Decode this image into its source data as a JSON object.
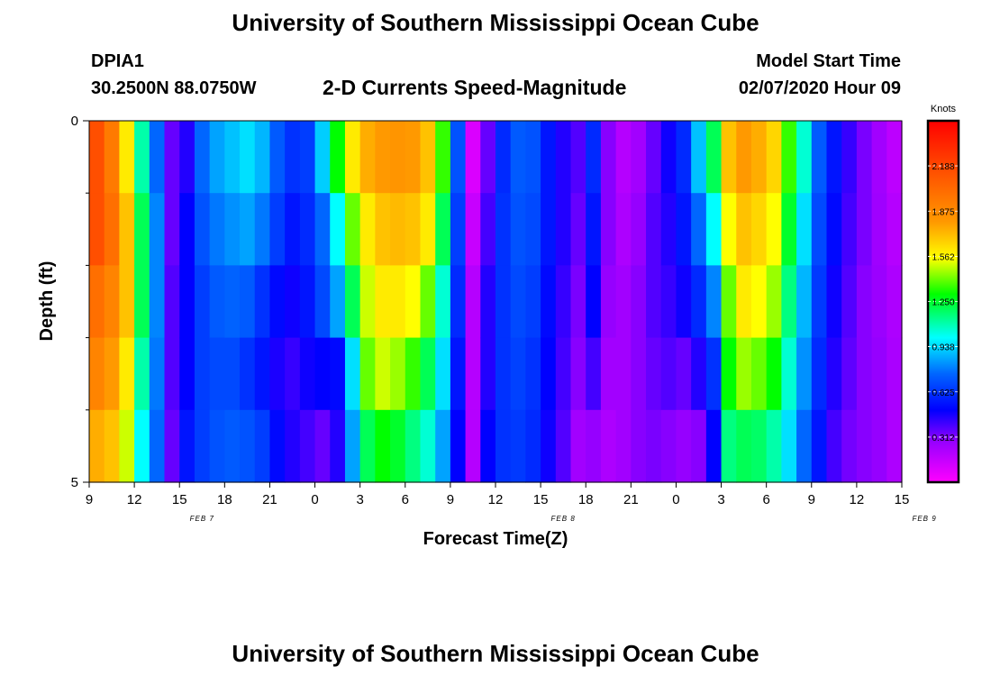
{
  "header": {
    "title": "University of Southern Mississippi Ocean Cube",
    "station": "DPIA1",
    "coordinates": "30.2500N 88.0750W",
    "subtitle": "2-D Currents Speed-Magnitude",
    "model_start_label": "Model Start Time",
    "model_start_value": "02/07/2020 Hour 09"
  },
  "footer": {
    "title": "University of Southern Mississippi Ocean Cube"
  },
  "chart_data": {
    "type": "heatmap",
    "xlabel": "Forecast Time(Z)",
    "ylabel": "Depth (ft)",
    "x_tick_labels": [
      "9",
      "12",
      "15",
      "18",
      "21",
      "0",
      "3",
      "6",
      "9",
      "12",
      "15",
      "18",
      "21",
      "0",
      "3",
      "6",
      "9",
      "12",
      "15"
    ],
    "day_labels": [
      {
        "label": "FEB 7",
        "hour_offset": 7.5
      },
      {
        "label": "FEB 8",
        "hour_offset": 31.5
      },
      {
        "label": "FEB 9",
        "hour_offset": 55.5
      }
    ],
    "x_range_hours": [
      0,
      54
    ],
    "y_tick_labels": [
      "0",
      "5"
    ],
    "y_range": [
      0,
      5
    ],
    "colorbar": {
      "unit": "Knots",
      "ticks": [
        "2.188",
        "1.875",
        "1.562",
        "1.250",
        "0.938",
        "0.625",
        "0.312"
      ],
      "range": [
        0,
        2.5
      ]
    },
    "depth_levels": 5,
    "columns": [
      {
        "hour": 0.5,
        "speeds": [
          2.15,
          2.15,
          2.0,
          1.9,
          1.75
        ]
      },
      {
        "hour": 1.5,
        "speeds": [
          1.95,
          2.0,
          1.9,
          1.8,
          1.7
        ]
      },
      {
        "hour": 2.5,
        "speeds": [
          1.6,
          1.7,
          1.7,
          1.6,
          1.5
        ]
      },
      {
        "hour": 3.5,
        "speeds": [
          1.1,
          1.2,
          1.2,
          1.1,
          1.0
        ]
      },
      {
        "hour": 4.5,
        "speeds": [
          0.75,
          0.8,
          0.8,
          0.78,
          0.75
        ]
      },
      {
        "hour": 5.5,
        "speeds": [
          0.35,
          0.35,
          0.38,
          0.38,
          0.35
        ]
      },
      {
        "hour": 6.5,
        "speeds": [
          0.45,
          0.5,
          0.5,
          0.5,
          0.55
        ]
      },
      {
        "hour": 7.5,
        "speeds": [
          0.75,
          0.7,
          0.65,
          0.65,
          0.65
        ]
      },
      {
        "hour": 8.5,
        "speeds": [
          0.85,
          0.78,
          0.72,
          0.68,
          0.7
        ]
      },
      {
        "hour": 9.5,
        "speeds": [
          0.9,
          0.82,
          0.74,
          0.68,
          0.72
        ]
      },
      {
        "hour": 10.5,
        "speeds": [
          0.95,
          0.85,
          0.72,
          0.62,
          0.7
        ]
      },
      {
        "hour": 11.5,
        "speeds": [
          0.88,
          0.78,
          0.62,
          0.55,
          0.65
        ]
      },
      {
        "hour": 12.5,
        "speeds": [
          0.72,
          0.65,
          0.52,
          0.46,
          0.52
        ]
      },
      {
        "hour": 13.5,
        "speeds": [
          0.62,
          0.55,
          0.48,
          0.42,
          0.45
        ]
      },
      {
        "hour": 14.5,
        "speeds": [
          0.65,
          0.6,
          0.55,
          0.48,
          0.4
        ]
      },
      {
        "hour": 15.5,
        "speeds": [
          0.92,
          0.75,
          0.68,
          0.5,
          0.35
        ]
      },
      {
        "hour": 16.5,
        "speeds": [
          1.3,
          1.0,
          0.85,
          0.52,
          0.45
        ]
      },
      {
        "hour": 17.5,
        "speeds": [
          1.6,
          1.4,
          1.2,
          0.95,
          0.85
        ]
      },
      {
        "hour": 18.5,
        "speeds": [
          1.75,
          1.6,
          1.5,
          1.4,
          1.2
        ]
      },
      {
        "hour": 19.5,
        "speeds": [
          1.8,
          1.7,
          1.6,
          1.5,
          1.3
        ]
      },
      {
        "hour": 20.5,
        "speeds": [
          1.82,
          1.72,
          1.6,
          1.45,
          1.25
        ]
      },
      {
        "hour": 21.5,
        "speeds": [
          1.8,
          1.7,
          1.55,
          1.35,
          1.15
        ]
      },
      {
        "hour": 22.5,
        "speeds": [
          1.7,
          1.6,
          1.4,
          1.2,
          1.05
        ]
      },
      {
        "hour": 23.5,
        "speeds": [
          1.35,
          1.2,
          1.05,
          0.95,
          0.85
        ]
      },
      {
        "hour": 24.5,
        "speeds": [
          0.7,
          0.65,
          0.6,
          0.55,
          0.5
        ]
      },
      {
        "hour": 25.5,
        "speeds": [
          0.1,
          0.15,
          0.2,
          0.2,
          0.2
        ]
      },
      {
        "hour": 26.5,
        "speeds": [
          0.35,
          0.4,
          0.45,
          0.45,
          0.5
        ]
      },
      {
        "hour": 27.5,
        "speeds": [
          0.6,
          0.62,
          0.62,
          0.62,
          0.62
        ]
      },
      {
        "hour": 28.5,
        "speeds": [
          0.72,
          0.7,
          0.68,
          0.66,
          0.64
        ]
      },
      {
        "hour": 29.5,
        "speeds": [
          0.7,
          0.68,
          0.65,
          0.62,
          0.6
        ]
      },
      {
        "hour": 30.5,
        "speeds": [
          0.55,
          0.55,
          0.52,
          0.5,
          0.48
        ]
      },
      {
        "hour": 31.5,
        "speeds": [
          0.45,
          0.45,
          0.42,
          0.4,
          0.38
        ]
      },
      {
        "hour": 32.5,
        "speeds": [
          0.38,
          0.35,
          0.32,
          0.3,
          0.25
        ]
      },
      {
        "hour": 33.5,
        "speeds": [
          0.6,
          0.55,
          0.5,
          0.4,
          0.28
        ]
      },
      {
        "hour": 34.5,
        "speeds": [
          0.3,
          0.3,
          0.28,
          0.25,
          0.22
        ]
      },
      {
        "hour": 35.5,
        "speeds": [
          0.2,
          0.22,
          0.25,
          0.25,
          0.25
        ]
      },
      {
        "hour": 36.5,
        "speeds": [
          0.25,
          0.28,
          0.3,
          0.3,
          0.3
        ]
      },
      {
        "hour": 37.5,
        "speeds": [
          0.35,
          0.38,
          0.38,
          0.35,
          0.32
        ]
      },
      {
        "hour": 38.5,
        "speeds": [
          0.48,
          0.45,
          0.42,
          0.38,
          0.3
        ]
      },
      {
        "hour": 39.5,
        "speeds": [
          0.6,
          0.55,
          0.48,
          0.35,
          0.28
        ]
      },
      {
        "hour": 40.5,
        "speeds": [
          0.9,
          0.75,
          0.6,
          0.45,
          0.3
        ]
      },
      {
        "hour": 41.5,
        "speeds": [
          1.2,
          1.0,
          0.8,
          0.62,
          0.5
        ]
      },
      {
        "hour": 42.5,
        "speeds": [
          1.7,
          1.55,
          1.4,
          1.3,
          1.15
        ]
      },
      {
        "hour": 43.5,
        "speeds": [
          1.8,
          1.7,
          1.6,
          1.45,
          1.2
        ]
      },
      {
        "hour": 44.5,
        "speeds": [
          1.75,
          1.65,
          1.55,
          1.4,
          1.18
        ]
      },
      {
        "hour": 45.5,
        "speeds": [
          1.65,
          1.55,
          1.45,
          1.3,
          1.1
        ]
      },
      {
        "hour": 46.5,
        "speeds": [
          1.35,
          1.25,
          1.15,
          1.05,
          0.95
        ]
      },
      {
        "hour": 47.5,
        "speeds": [
          1.05,
          0.95,
          0.88,
          0.82,
          0.75
        ]
      },
      {
        "hour": 48.5,
        "speeds": [
          0.72,
          0.68,
          0.64,
          0.6,
          0.55
        ]
      },
      {
        "hour": 49.5,
        "speeds": [
          0.55,
          0.52,
          0.48,
          0.45,
          0.4
        ]
      },
      {
        "hour": 50.5,
        "speeds": [
          0.42,
          0.4,
          0.38,
          0.36,
          0.33
        ]
      },
      {
        "hour": 51.5,
        "speeds": [
          0.32,
          0.32,
          0.3,
          0.3,
          0.3
        ]
      },
      {
        "hour": 52.5,
        "speeds": [
          0.25,
          0.26,
          0.27,
          0.28,
          0.28
        ]
      },
      {
        "hour": 53.5,
        "speeds": [
          0.18,
          0.2,
          0.22,
          0.23,
          0.22
        ]
      }
    ]
  }
}
